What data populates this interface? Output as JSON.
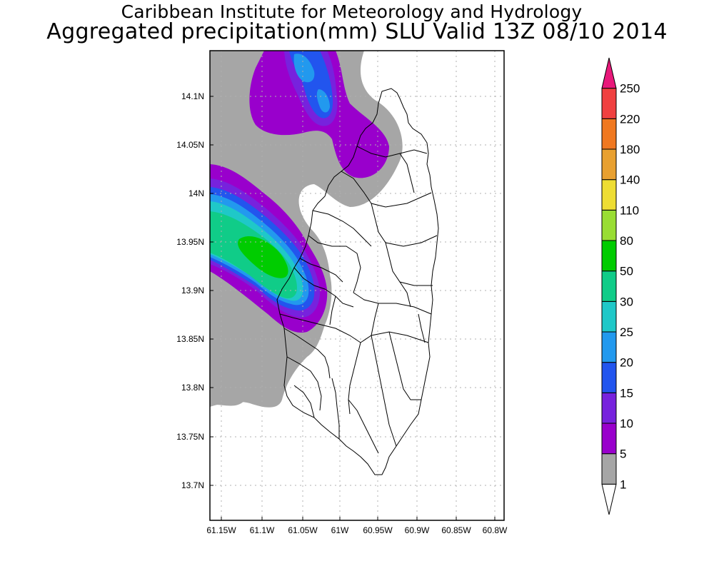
{
  "header": {
    "title": "Caribbean Institute for Meteorology and Hydrology",
    "subtitle": "Aggregated precipitation(mm) SLU Valid 13Z 08/10 2014"
  },
  "map": {
    "lat_ticks": [
      "14.1N",
      "14.05N",
      "14N",
      "13.95N",
      "13.9N",
      "13.85N",
      "13.8N",
      "13.75N",
      "13.7N"
    ],
    "lon_ticks": [
      "61.15W",
      "61.1W",
      "61.05W",
      "61W",
      "60.95W",
      "60.9W",
      "60.85W",
      "60.8W"
    ],
    "grid": true
  },
  "colorbar": {
    "labels": [
      "1",
      "5",
      "10",
      "15",
      "20",
      "25",
      "30",
      "50",
      "80",
      "110",
      "140",
      "180",
      "220",
      "250"
    ],
    "colors": [
      "#ffffff",
      "#a6a6a6",
      "#9900cc",
      "#7722dd",
      "#2255ee",
      "#2299ee",
      "#1fc8c8",
      "#10cc88",
      "#00cc00",
      "#99dd33",
      "#eedd33",
      "#e8a030",
      "#f07820",
      "#f04040",
      "#e8187a"
    ]
  }
}
